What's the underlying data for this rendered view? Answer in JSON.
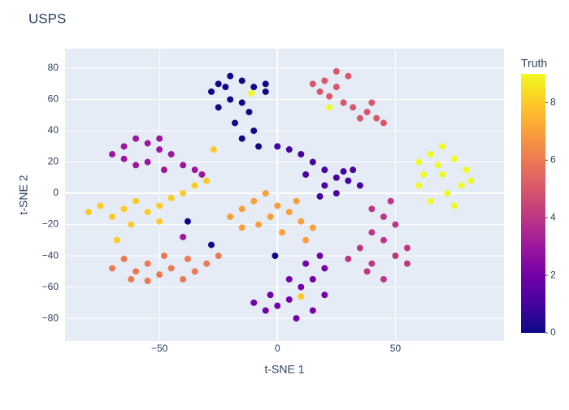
{
  "chart_data": {
    "type": "scatter",
    "title": "USPS",
    "x_label": "t-SNE 1",
    "y_label": "t-SNE 2",
    "colorbar_title": "Truth",
    "xlim": [
      -90,
      96
    ],
    "ylim": [
      -94.5,
      92.5
    ],
    "xticks": [
      {
        "value": -50,
        "label": "−50"
      },
      0,
      50
    ],
    "yticks": [
      {
        "value": -80,
        "label": "−80"
      },
      {
        "value": -60,
        "label": "−60"
      },
      {
        "value": -40,
        "label": "−40"
      },
      {
        "value": -20,
        "label": "−20"
      },
      0,
      20,
      40,
      60,
      80
    ],
    "clim": [
      0,
      9
    ],
    "cticks": [
      0,
      2,
      4,
      6,
      8
    ],
    "colorscale": [
      "#0d0887",
      "#46039f",
      "#7201a8",
      "#9c179e",
      "#bd3786",
      "#d8576b",
      "#ed7953",
      "#fb9f3a",
      "#fdca26",
      "#f0f921"
    ],
    "grid": true,
    "x": [
      -25,
      -20,
      -15,
      -10,
      -5,
      -20,
      -15,
      -28,
      -12,
      -18,
      -10,
      -15,
      -8,
      -22,
      -5,
      -25,
      0,
      5,
      10,
      15,
      20,
      25,
      30,
      35,
      25,
      20,
      28,
      12,
      32,
      18,
      -10,
      -5,
      0,
      5,
      10,
      15,
      20,
      12,
      5,
      15,
      20,
      8,
      -3,
      18,
      -70,
      -65,
      -60,
      -55,
      -50,
      -45,
      -55,
      -60,
      -48,
      -40,
      -35,
      -32,
      -65,
      -50,
      40,
      45,
      50,
      40,
      45,
      35,
      30,
      40,
      50,
      55,
      45,
      55,
      38,
      48,
      15,
      20,
      25,
      30,
      22,
      28,
      32,
      38,
      42,
      45,
      35,
      40,
      18,
      25,
      -70,
      -65,
      -60,
      -55,
      -50,
      -45,
      -40,
      -35,
      -30,
      -25,
      -62,
      -48,
      -38,
      -55,
      -20,
      -15,
      -10,
      -5,
      0,
      5,
      10,
      15,
      -8,
      2,
      -15,
      8,
      12,
      -3,
      -80,
      -75,
      -70,
      -65,
      -60,
      -55,
      -50,
      -45,
      -40,
      -35,
      -30,
      -62,
      -68,
      -50,
      60,
      65,
      70,
      75,
      80,
      78,
      72,
      65,
      60,
      70,
      62,
      75,
      82,
      68,
      -11,
      -40,
      -28,
      -1,
      -38,
      22,
      10,
      -27
    ],
    "values": [
      70,
      75,
      72,
      68,
      65,
      60,
      58,
      65,
      52,
      45,
      40,
      35,
      30,
      68,
      70,
      55,
      30,
      28,
      25,
      20,
      15,
      10,
      8,
      5,
      0,
      5,
      14,
      12,
      15,
      -2,
      -70,
      -75,
      -72,
      -68,
      -60,
      -55,
      -48,
      -45,
      -55,
      -75,
      -65,
      -80,
      -65,
      -40,
      25,
      30,
      35,
      32,
      28,
      25,
      20,
      18,
      15,
      18,
      15,
      12,
      22,
      35,
      -10,
      -15,
      -20,
      -25,
      -30,
      -35,
      -42,
      -45,
      -40,
      -45,
      -55,
      -35,
      -50,
      -5,
      70,
      72,
      68,
      75,
      62,
      58,
      55,
      52,
      48,
      45,
      48,
      58,
      65,
      78,
      -48,
      -42,
      -50,
      -45,
      -52,
      -48,
      -55,
      -50,
      -45,
      -40,
      -55,
      -40,
      -42,
      -56,
      -15,
      -10,
      -5,
      0,
      -8,
      -12,
      -18,
      -22,
      -20,
      -25,
      -22,
      -5,
      -30,
      -15,
      -12,
      -8,
      -15,
      -10,
      -5,
      -12,
      -8,
      -3,
      0,
      5,
      8,
      -20,
      -30,
      -18,
      20,
      25,
      30,
      22,
      15,
      5,
      0,
      -5,
      5,
      12,
      12,
      -8,
      8,
      18,
      64,
      -28,
      -33,
      -40,
      -18,
      55,
      -66,
      28
    ],
    "color_values": [
      0,
      0,
      0,
      0,
      0,
      0,
      0,
      0,
      0,
      0,
      0,
      0,
      0,
      0,
      0,
      0,
      1,
      1,
      1,
      1,
      1,
      1,
      1,
      1,
      1,
      1,
      1,
      1,
      1,
      1,
      2,
      2,
      2,
      2,
      2,
      2,
      2,
      2,
      2,
      2,
      2,
      2,
      2,
      2,
      3,
      3,
      3,
      3,
      3,
      3,
      3,
      3,
      3,
      3,
      3,
      3,
      3,
      3,
      4,
      4,
      4,
      4,
      4,
      4,
      4,
      4,
      4,
      4,
      4,
      4,
      4,
      4,
      5,
      5,
      5,
      5,
      5,
      5,
      5,
      5,
      5,
      5,
      5,
      5,
      5,
      5,
      6,
      6,
      6,
      6,
      6,
      6,
      6,
      6,
      6,
      6,
      6,
      6,
      6,
      6,
      7,
      7,
      7,
      7,
      7,
      7,
      7,
      7,
      7,
      7,
      7,
      7,
      7,
      7,
      8,
      8,
      8,
      8,
      8,
      8,
      8,
      8,
      8,
      8,
      8,
      8,
      8,
      8,
      9,
      9,
      9,
      9,
      9,
      9,
      9,
      9,
      9,
      9,
      9,
      9,
      9,
      9,
      9,
      3,
      0,
      0,
      0,
      9,
      8,
      8
    ]
  }
}
